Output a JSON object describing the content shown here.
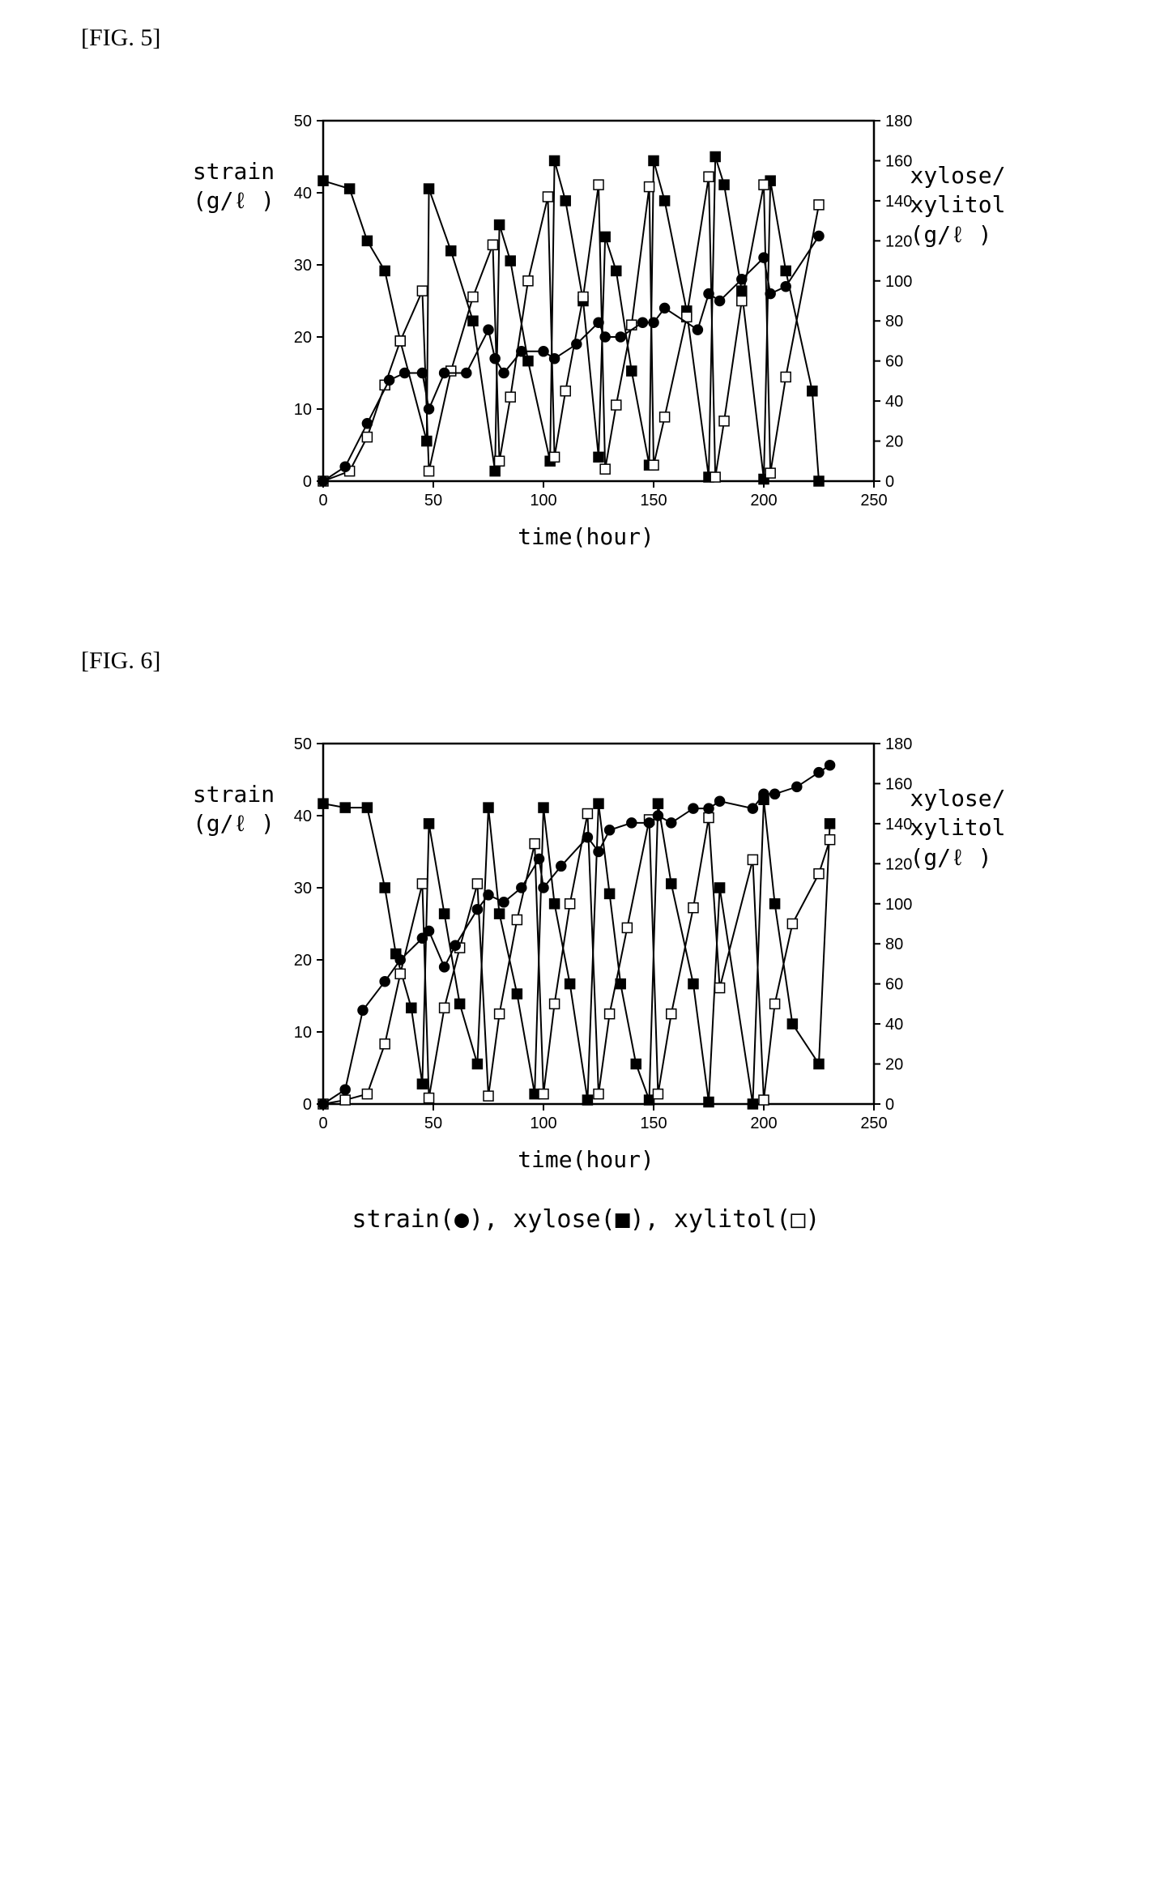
{
  "fig5": {
    "label": "[FIG. 5]",
    "type": "line",
    "left_axis": {
      "label": "strain",
      "unit": "(g/ℓ )",
      "min": 0,
      "max": 50,
      "step": 10,
      "fontsize": 20
    },
    "right_axis": {
      "label": "xylose/\nxylitol",
      "unit": "(g/ℓ )",
      "min": 0,
      "max": 180,
      "step": 20,
      "fontsize": 20
    },
    "x_axis": {
      "label": "time(hour)",
      "min": 0,
      "max": 250,
      "step": 50,
      "fontsize": 20
    },
    "plot_background": "#ffffff",
    "frame_color": "#000000",
    "line_width": 2,
    "marker_size": 6,
    "series": {
      "strain": {
        "axis": "left",
        "color": "#000000",
        "marker": "circle",
        "fill": "#000000",
        "x": [
          0,
          10,
          20,
          30,
          37,
          45,
          48,
          55,
          65,
          75,
          78,
          82,
          90,
          100,
          105,
          115,
          125,
          128,
          135,
          145,
          150,
          155,
          170,
          175,
          180,
          190,
          200,
          203,
          210,
          225
        ],
        "y": [
          0,
          2,
          8,
          14,
          15,
          15,
          10,
          15,
          15,
          21,
          17,
          15,
          18,
          18,
          17,
          19,
          22,
          20,
          20,
          22,
          22,
          24,
          21,
          26,
          25,
          28,
          31,
          26,
          27,
          34
        ]
      },
      "xylose": {
        "axis": "right",
        "color": "#000000",
        "marker": "square",
        "fill": "#000000",
        "x": [
          0,
          12,
          20,
          28,
          35,
          47,
          48,
          58,
          68,
          78,
          80,
          85,
          93,
          103,
          105,
          110,
          118,
          125,
          128,
          133,
          140,
          148,
          150,
          155,
          165,
          175,
          178,
          182,
          190,
          200,
          203,
          210,
          222,
          225
        ],
        "y": [
          150,
          146,
          120,
          105,
          70,
          20,
          146,
          115,
          80,
          5,
          128,
          110,
          60,
          10,
          160,
          140,
          90,
          12,
          122,
          105,
          55,
          8,
          160,
          140,
          85,
          2,
          162,
          148,
          95,
          1,
          150,
          105,
          45,
          0
        ]
      },
      "xylitol": {
        "axis": "right",
        "color": "#000000",
        "marker": "square",
        "fill": "#ffffff",
        "x": [
          0,
          12,
          20,
          28,
          35,
          45,
          48,
          58,
          68,
          77,
          80,
          85,
          93,
          102,
          105,
          110,
          118,
          125,
          128,
          133,
          140,
          148,
          150,
          155,
          165,
          175,
          178,
          182,
          190,
          200,
          203,
          210,
          225
        ],
        "y": [
          0,
          5,
          22,
          48,
          70,
          95,
          5,
          55,
          92,
          118,
          10,
          42,
          100,
          142,
          12,
          45,
          92,
          148,
          6,
          38,
          78,
          147,
          8,
          32,
          82,
          152,
          2,
          30,
          90,
          148,
          4,
          52,
          138
        ]
      }
    }
  },
  "fig6": {
    "label": "[FIG. 6]",
    "type": "line",
    "left_axis": {
      "label": "strain",
      "unit": "(g/ℓ )",
      "min": 0,
      "max": 50,
      "step": 10,
      "fontsize": 20
    },
    "right_axis": {
      "label": "xylose/\nxylitol",
      "unit": "(g/ℓ )",
      "min": 0,
      "max": 180,
      "step": 20,
      "fontsize": 20
    },
    "x_axis": {
      "label": "time(hour)",
      "min": 0,
      "max": 250,
      "step": 50,
      "fontsize": 20
    },
    "plot_background": "#ffffff",
    "frame_color": "#000000",
    "line_width": 2,
    "marker_size": 6,
    "series": {
      "strain": {
        "axis": "left",
        "color": "#000000",
        "marker": "circle",
        "fill": "#000000",
        "x": [
          0,
          10,
          18,
          28,
          35,
          45,
          48,
          55,
          60,
          70,
          75,
          82,
          90,
          98,
          100,
          108,
          120,
          125,
          130,
          140,
          148,
          152,
          158,
          168,
          175,
          180,
          195,
          200,
          205,
          215,
          225,
          230
        ],
        "y": [
          0,
          2,
          13,
          17,
          20,
          23,
          24,
          19,
          22,
          27,
          29,
          28,
          30,
          34,
          30,
          33,
          37,
          35,
          38,
          39,
          39,
          40,
          39,
          41,
          41,
          42,
          41,
          43,
          43,
          44,
          46,
          47
        ]
      },
      "xylose": {
        "axis": "right",
        "color": "#000000",
        "marker": "square",
        "fill": "#000000",
        "x": [
          0,
          10,
          20,
          28,
          33,
          40,
          45,
          48,
          55,
          62,
          70,
          75,
          80,
          88,
          96,
          100,
          105,
          112,
          120,
          125,
          130,
          135,
          142,
          148,
          152,
          158,
          168,
          175,
          180,
          195,
          200,
          205,
          213,
          225,
          230
        ],
        "y": [
          150,
          148,
          148,
          108,
          75,
          48,
          10,
          140,
          95,
          50,
          20,
          148,
          95,
          55,
          5,
          148,
          100,
          60,
          2,
          150,
          105,
          60,
          20,
          2,
          150,
          110,
          60,
          1,
          108,
          0,
          152,
          100,
          40,
          20,
          140
        ]
      },
      "xylitol": {
        "axis": "right",
        "color": "#000000",
        "marker": "square",
        "fill": "#ffffff",
        "x": [
          0,
          10,
          20,
          28,
          35,
          45,
          48,
          55,
          62,
          70,
          75,
          80,
          88,
          96,
          100,
          105,
          112,
          120,
          125,
          130,
          138,
          148,
          152,
          158,
          168,
          175,
          180,
          195,
          200,
          205,
          213,
          225,
          230
        ],
        "y": [
          0,
          2,
          5,
          30,
          65,
          110,
          3,
          48,
          78,
          110,
          4,
          45,
          92,
          130,
          5,
          50,
          100,
          145,
          5,
          45,
          88,
          142,
          5,
          45,
          98,
          143,
          58,
          122,
          2,
          50,
          90,
          115,
          132
        ]
      }
    }
  },
  "legend_text": "strain(●), xylose(■), xylitol(□)",
  "label_fontsize": 28
}
